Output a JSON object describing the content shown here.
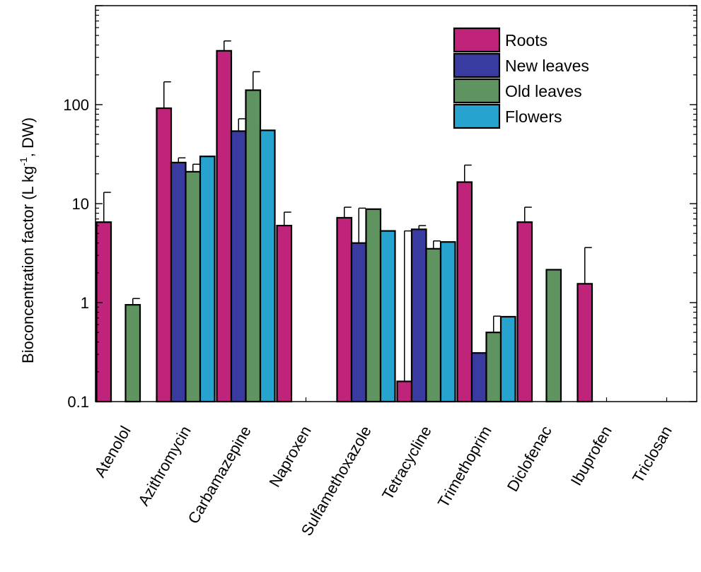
{
  "chart_data": {
    "type": "bar",
    "yscale": "log",
    "ylim": [
      0.1,
      1000
    ],
    "ylabel": "Bioconcentration factor (L kg",
    "ylabel_sup": "-1",
    "ylabel_tail": ", DW)",
    "xlabel": "",
    "yticks": [
      {
        "value": 0.1,
        "label": "0.1"
      },
      {
        "value": 1,
        "label": "1"
      },
      {
        "value": 10,
        "label": "10"
      },
      {
        "value": 100,
        "label": "100"
      }
    ],
    "categories": [
      "Atenolol",
      "Azithromycin",
      "Carbamazepine",
      "Naproxen",
      "Sulfamethoxazole",
      "Tetracycline",
      "Trimethoprim",
      "Diclofenac",
      "Ibuprofen",
      "Triclosan"
    ],
    "legend_position": "top-right",
    "grid": false,
    "series": [
      {
        "name": "Roots",
        "color": "#c0237a",
        "values": [
          6.5,
          92,
          350,
          6,
          7.2,
          0.16,
          16.5,
          6.5,
          1.55,
          null
        ],
        "errors": [
          13,
          170,
          440,
          8.2,
          9.2,
          5.3,
          24.5,
          9.2,
          3.6,
          null
        ]
      },
      {
        "name": "New leaves",
        "color": "#3a3ba0",
        "values": [
          null,
          26,
          54,
          null,
          4,
          5.5,
          0.31,
          null,
          null,
          null
        ],
        "errors": [
          null,
          29,
          72,
          null,
          9,
          6,
          null,
          null,
          null,
          null
        ]
      },
      {
        "name": "Old leaves",
        "color": "#5f9460",
        "values": [
          0.95,
          21,
          140,
          null,
          8.8,
          3.5,
          0.5,
          2.15,
          null,
          null
        ],
        "errors": [
          1.1,
          25,
          215,
          null,
          null,
          4.2,
          0.73,
          null,
          null,
          null
        ]
      },
      {
        "name": "Flowers",
        "color": "#26a4cf",
        "values": [
          null,
          30,
          55,
          null,
          5.3,
          4.1,
          0.72,
          null,
          null,
          null
        ],
        "errors": [
          null,
          null,
          null,
          null,
          null,
          null,
          null,
          null,
          null,
          null
        ]
      }
    ]
  }
}
